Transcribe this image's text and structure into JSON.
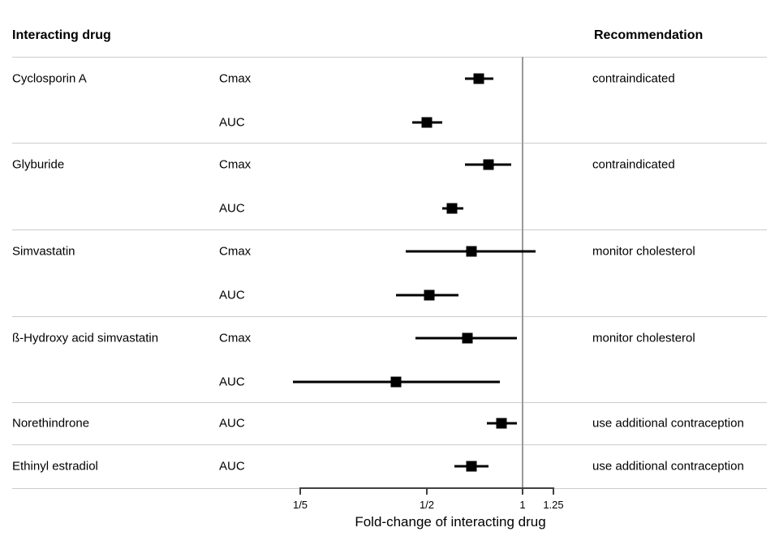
{
  "header": {
    "left": "Interacting drug",
    "right": "Recommendation"
  },
  "chart_data": {
    "type": "forest",
    "x_scale": "log10",
    "xlabel": "Fold-change of interacting drug",
    "x_ticks": [
      {
        "label": "1/5",
        "value": 0.2
      },
      {
        "label": "1/2",
        "value": 0.5
      },
      {
        "label": "1",
        "value": 1
      },
      {
        "label": "1.25",
        "value": 1.25
      }
    ],
    "reference_line_value": 1,
    "groups": [
      {
        "drug": "Cyclosporin A",
        "recommendation": "contraindicated",
        "measures": [
          {
            "label": "Cmax",
            "estimate": 0.73,
            "ci_low": 0.66,
            "ci_high": 0.81
          },
          {
            "label": "AUC",
            "estimate": 0.5,
            "ci_low": 0.45,
            "ci_high": 0.56
          }
        ]
      },
      {
        "drug": "Glyburide",
        "recommendation": "contraindicated",
        "measures": [
          {
            "label": "Cmax",
            "estimate": 0.78,
            "ci_low": 0.66,
            "ci_high": 0.92
          },
          {
            "label": "AUC",
            "estimate": 0.6,
            "ci_low": 0.56,
            "ci_high": 0.65
          }
        ]
      },
      {
        "drug": "Simvastatin",
        "recommendation": "monitor cholesterol",
        "measures": [
          {
            "label": "Cmax",
            "estimate": 0.69,
            "ci_low": 0.43,
            "ci_high": 1.1
          },
          {
            "label": "AUC",
            "estimate": 0.51,
            "ci_low": 0.4,
            "ci_high": 0.63
          }
        ]
      },
      {
        "drug": "ß-Hydroxy acid simvastatin",
        "recommendation": "monitor cholesterol",
        "measures": [
          {
            "label": "Cmax",
            "estimate": 0.67,
            "ci_low": 0.46,
            "ci_high": 0.96
          },
          {
            "label": "AUC",
            "estimate": 0.4,
            "ci_low": 0.19,
            "ci_high": 0.85
          }
        ]
      },
      {
        "drug": "Norethindrone",
        "recommendation": "use additional contraception",
        "measures": [
          {
            "label": "AUC",
            "estimate": 0.86,
            "ci_low": 0.77,
            "ci_high": 0.96
          }
        ]
      },
      {
        "drug": "Ethinyl estradiol",
        "recommendation": "use additional contraception",
        "measures": [
          {
            "label": "AUC",
            "estimate": 0.69,
            "ci_low": 0.61,
            "ci_high": 0.78
          }
        ]
      }
    ]
  },
  "colors": {
    "marker": "#000000",
    "separator": "#cccccc",
    "reference_line": "#999999",
    "axis": "#404040",
    "text": "#000000"
  }
}
